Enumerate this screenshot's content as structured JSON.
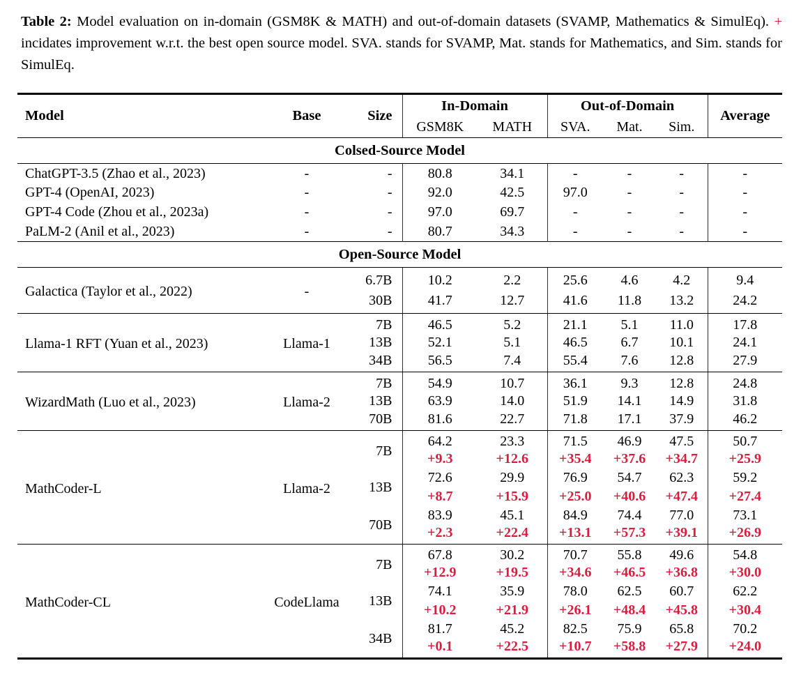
{
  "caption": {
    "label": "Table 2:",
    "lead": "Model evaluation on in-domain (GSM8K & MATH) and out-of-domain datasets (SVAMP, Mathematics & SimulEq).",
    "plus": "+",
    "rest": "incidates improvement w.r.t. the best open source model. SVA. stands for SVAMP, Mat. stands for Mathematics, and Sim. stands for SimulEq."
  },
  "colors": {
    "accent_red": "#d81e3f",
    "rule_black": "#000000"
  },
  "header": {
    "model": "Model",
    "base": "Base",
    "size": "Size",
    "in_domain": "In-Domain",
    "out_of_domain": "Out-of-Domain",
    "average": "Average",
    "gsm8k": "GSM8K",
    "math": "MATH",
    "sva": "SVA.",
    "mat": "Mat.",
    "sim": "Sim."
  },
  "sections": [
    {
      "title": "Colsed-Source Model",
      "groups": [
        {
          "model": "ChatGPT-3.5 (Zhao et al., 2023)",
          "base": "-",
          "rows": [
            {
              "size": "-",
              "values": [
                "80.8",
                "34.1",
                "-",
                "-",
                "-",
                "-"
              ]
            }
          ]
        },
        {
          "model": "GPT-4 (OpenAI, 2023)",
          "base": "-",
          "rows": [
            {
              "size": "-",
              "values": [
                "92.0",
                "42.5",
                "97.0",
                "-",
                "-",
                "-"
              ]
            }
          ]
        },
        {
          "model": "GPT-4 Code (Zhou et al., 2023a)",
          "base": "-",
          "rows": [
            {
              "size": "-",
              "values": [
                "97.0",
                "69.7",
                "-",
                "-",
                "-",
                "-"
              ]
            }
          ]
        },
        {
          "model": "PaLM-2 (Anil et al., 2023)",
          "base": "-",
          "rows": [
            {
              "size": "-",
              "values": [
                "80.7",
                "34.3",
                "-",
                "-",
                "-",
                "-"
              ]
            }
          ]
        }
      ]
    },
    {
      "title": "Open-Source Model",
      "groups": [
        {
          "model": "Galactica (Taylor et al., 2022)",
          "base": "-",
          "rows": [
            {
              "size": "6.7B",
              "values": [
                "10.2",
                "2.2",
                "25.6",
                "4.6",
                "4.2",
                "9.4"
              ]
            },
            {
              "size": "30B",
              "values": [
                "41.7",
                "12.7",
                "41.6",
                "11.8",
                "13.2",
                "24.2"
              ]
            }
          ]
        },
        {
          "model": "Llama-1 RFT (Yuan et al., 2023)",
          "base": "Llama-1",
          "rows": [
            {
              "size": "7B",
              "values": [
                "46.5",
                "5.2",
                "21.1",
                "5.1",
                "11.0",
                "17.8"
              ]
            },
            {
              "size": "13B",
              "values": [
                "52.1",
                "5.1",
                "46.5",
                "6.7",
                "10.1",
                "24.1"
              ]
            },
            {
              "size": "34B",
              "values": [
                "56.5",
                "7.4",
                "55.4",
                "7.6",
                "12.8",
                "27.9"
              ]
            }
          ]
        },
        {
          "model": "WizardMath (Luo et al., 2023)",
          "base": "Llama-2",
          "rows": [
            {
              "size": "7B",
              "values": [
                "54.9",
                "10.7",
                "36.1",
                "9.3",
                "12.8",
                "24.8"
              ]
            },
            {
              "size": "13B",
              "values": [
                "63.9",
                "14.0",
                "51.9",
                "14.1",
                "14.9",
                "31.8"
              ]
            },
            {
              "size": "70B",
              "values": [
                "81.6",
                "22.7",
                "71.8",
                "17.1",
                "37.9",
                "46.2"
              ]
            }
          ]
        },
        {
          "model": "MathCoder-L",
          "base": "Llama-2",
          "rows": [
            {
              "size": "7B",
              "values": [
                "64.2",
                "23.3",
                "71.5",
                "46.9",
                "47.5",
                "50.7"
              ],
              "deltas": [
                "+9.3",
                "+12.6",
                "+35.4",
                "+37.6",
                "+34.7",
                "+25.9"
              ]
            },
            {
              "size": "13B",
              "values": [
                "72.6",
                "29.9",
                "76.9",
                "54.7",
                "62.3",
                "59.2"
              ],
              "deltas": [
                "+8.7",
                "+15.9",
                "+25.0",
                "+40.6",
                "+47.4",
                "+27.4"
              ]
            },
            {
              "size": "70B",
              "values": [
                "83.9",
                "45.1",
                "84.9",
                "74.4",
                "77.0",
                "73.1"
              ],
              "deltas": [
                "+2.3",
                "+22.4",
                "+13.1",
                "+57.3",
                "+39.1",
                "+26.9"
              ]
            }
          ]
        },
        {
          "model": "MathCoder-CL",
          "base": "CodeLlama",
          "rows": [
            {
              "size": "7B",
              "values": [
                "67.8",
                "30.2",
                "70.7",
                "55.8",
                "49.6",
                "54.8"
              ],
              "deltas": [
                "+12.9",
                "+19.5",
                "+34.6",
                "+46.5",
                "+36.8",
                "+30.0"
              ]
            },
            {
              "size": "13B",
              "values": [
                "74.1",
                "35.9",
                "78.0",
                "62.5",
                "60.7",
                "62.2"
              ],
              "deltas": [
                "+10.2",
                "+21.9",
                "+26.1",
                "+48.4",
                "+45.8",
                "+30.4"
              ]
            },
            {
              "size": "34B",
              "values": [
                "81.7",
                "45.2",
                "82.5",
                "75.9",
                "65.8",
                "70.2"
              ],
              "deltas": [
                "+0.1",
                "+22.5",
                "+10.7",
                "+58.8",
                "+27.9",
                "+24.0"
              ]
            }
          ]
        }
      ]
    }
  ]
}
